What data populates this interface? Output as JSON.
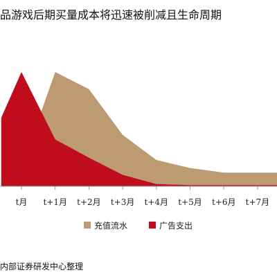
{
  "title": "品游戏后期买量成本将迅速被削减且生命周期",
  "source": "内部证券研发中心整理",
  "chart_data": {
    "type": "area",
    "title": "品游戏后期买量成本将迅速被削减且生命周期",
    "categories": [
      "t月",
      "t+1月",
      "t+2月",
      "t+3月",
      "t+4月",
      "t+5月",
      "t+6月",
      "t+7月"
    ],
    "ylim": [
      0,
      100
    ],
    "grid": false,
    "legend_position": "bottom",
    "series": [
      {
        "name": "充值流水",
        "color": "#bc9a72",
        "x": [
          -0.6,
          0.5,
          1,
          2,
          3,
          4,
          5,
          6,
          7,
          7.6
        ],
        "values": [
          55,
          58,
          100,
          85,
          45,
          23,
          16,
          12,
          12,
          12
        ]
      },
      {
        "name": "广告支出",
        "color": "#c00d1d",
        "x": [
          -0.6,
          0,
          1,
          2,
          3,
          4,
          5,
          6,
          7,
          7.6
        ],
        "values": [
          60,
          100,
          41,
          25,
          10,
          2,
          1,
          1,
          1,
          1
        ]
      }
    ]
  }
}
